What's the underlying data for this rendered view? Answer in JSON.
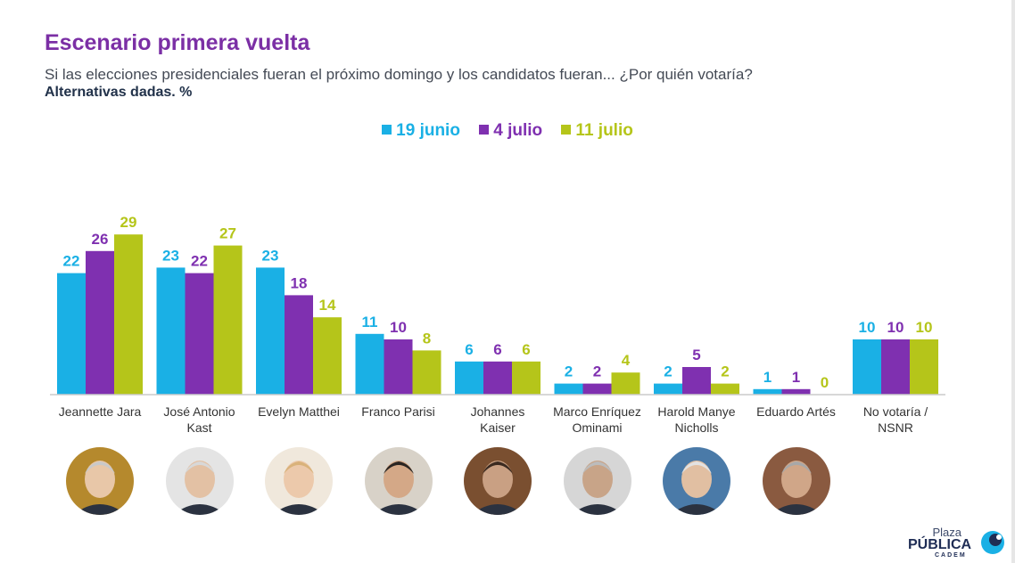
{
  "header": {
    "title": "Escenario primera vuelta",
    "subtitle": "Si las elecciones presidenciales fueran el próximo domingo y los candidatos fueran... ¿Por quién votaría?",
    "note": "Alternativas dadas. %"
  },
  "colors": {
    "s0": "#1ab0e5",
    "s1": "#7f30b0",
    "s2": "#b5c51a",
    "axis": "#cccccc",
    "label": "#333333"
  },
  "chart_data": {
    "type": "bar",
    "title": "Escenario primera vuelta",
    "categories": [
      "Jeannette Jara",
      "José Antonio Kast",
      "Evelyn Matthei",
      "Franco Parisi",
      "Johannes Kaiser",
      "Marco Enríquez Ominami",
      "Harold Manye Nicholls",
      "Eduardo Artés",
      "No votaría / NSNR"
    ],
    "category_lines": [
      [
        "Jeannette Jara"
      ],
      [
        "José Antonio",
        "Kast"
      ],
      [
        "Evelyn Matthei"
      ],
      [
        "Franco Parisi"
      ],
      [
        "Johannes",
        "Kaiser"
      ],
      [
        "Marco Enríquez",
        "Ominami"
      ],
      [
        "Harold Manye",
        "Nicholls"
      ],
      [
        "Eduardo Artés"
      ],
      [
        "No votaría /",
        "NSNR"
      ]
    ],
    "series": [
      {
        "name": "19 junio",
        "values": [
          22,
          23,
          23,
          11,
          6,
          2,
          2,
          1,
          10
        ]
      },
      {
        "name": "4 julio",
        "values": [
          26,
          22,
          18,
          10,
          6,
          2,
          5,
          1,
          10
        ]
      },
      {
        "name": "11 julio",
        "values": [
          29,
          27,
          14,
          8,
          6,
          4,
          2,
          0,
          10
        ]
      }
    ],
    "xlabel": "",
    "ylabel": "%",
    "ylim": [
      0,
      30
    ],
    "grid": false,
    "legend": "top-center"
  },
  "photos": [
    "Jeannette Jara",
    "José Antonio Kast",
    "Evelyn Matthei",
    "Franco Parisi",
    "Johannes Kaiser",
    "Marco Enríquez Ominami",
    "Harold Manye Nicholls",
    "Eduardo Artés"
  ],
  "logo": {
    "line1": "Plaza",
    "line2": "PÚBLICA",
    "line3": "CADEM"
  }
}
